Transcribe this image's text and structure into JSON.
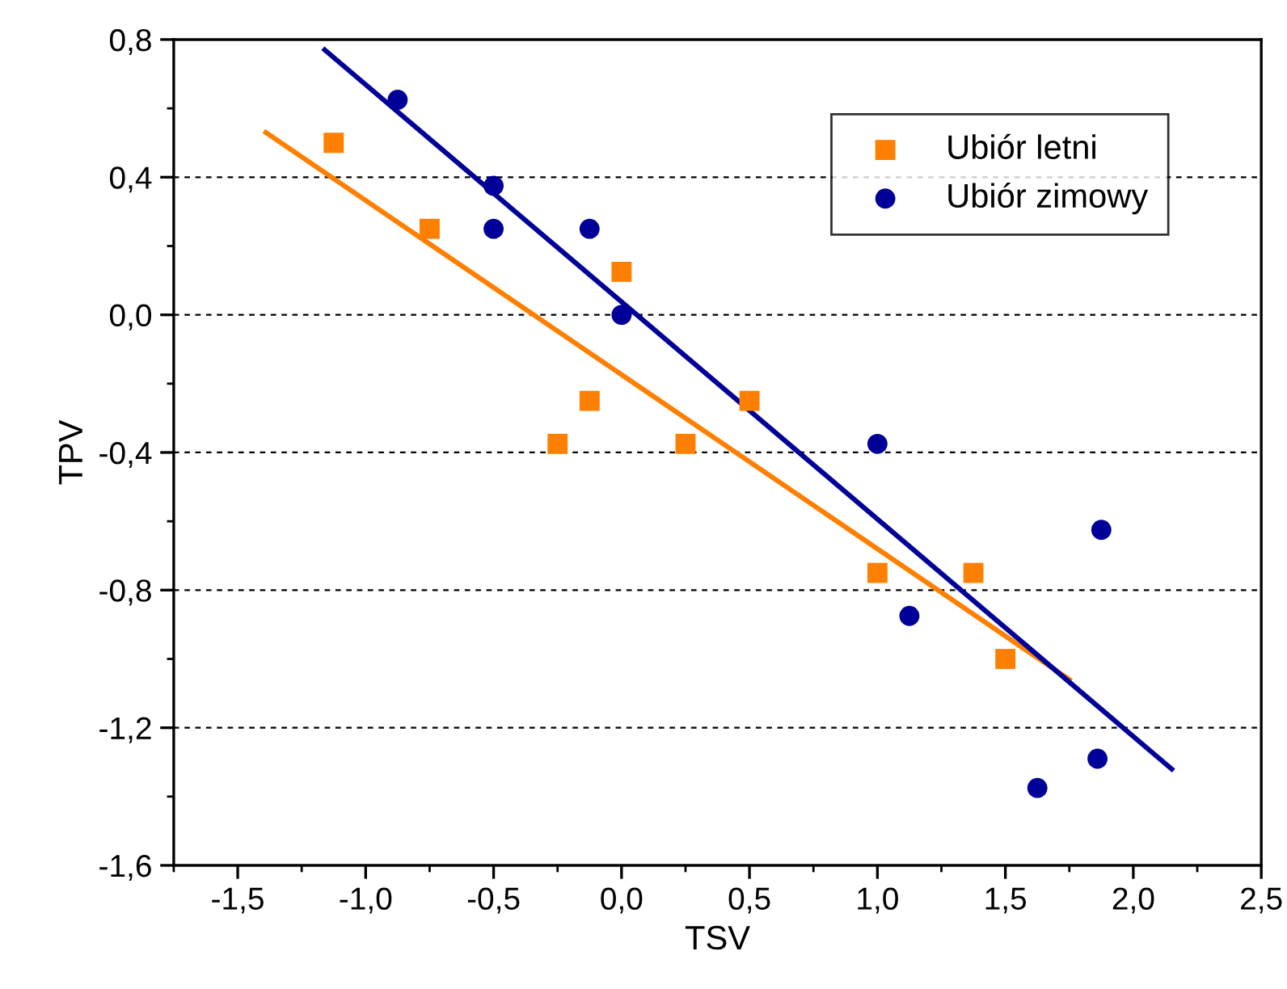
{
  "chart_data": {
    "type": "scatter",
    "xlabel": "TSV",
    "ylabel": "TPV",
    "xlim": [
      -1.75,
      2.5
    ],
    "xticks": [
      {
        "value": -1.5,
        "label": "-1,5"
      },
      {
        "value": -1.0,
        "label": "-1,0"
      },
      {
        "value": -0.5,
        "label": "-0,5"
      },
      {
        "value": 0.0,
        "label": "0,0"
      },
      {
        "value": 0.5,
        "label": "0,5"
      },
      {
        "value": 1.0,
        "label": "1,0"
      },
      {
        "value": 1.5,
        "label": "1,5"
      },
      {
        "value": 2.0,
        "label": "2,0"
      },
      {
        "value": 2.5,
        "label": "2,5"
      }
    ],
    "ylim": [
      -1.6,
      0.8
    ],
    "yticks": [
      {
        "value": -1.6,
        "label": "-1,6"
      },
      {
        "value": -1.2,
        "label": "-1,2"
      },
      {
        "value": -0.8,
        "label": "-0,8"
      },
      {
        "value": -0.4,
        "label": "-0,4"
      },
      {
        "value": 0.0,
        "label": "0,0"
      },
      {
        "value": 0.4,
        "label": "0,4"
      },
      {
        "value": 0.8,
        "label": "0,8"
      }
    ],
    "grid": "y",
    "legend": "top right",
    "series": [
      {
        "name": "Ubiór letni",
        "color": "#ff7f00",
        "marker": "square",
        "x": [
          -1.125,
          -0.75,
          0.0,
          -0.125,
          -0.25,
          0.25,
          0.5,
          1.0,
          1.375,
          1.5
        ],
        "values": [
          0.5,
          0.25,
          0.125,
          -0.25,
          -0.375,
          -0.375,
          -0.25,
          -0.75,
          -0.75,
          -1.0
        ]
      },
      {
        "name": "Ubiór zimowy",
        "color": "#000099",
        "marker": "circle",
        "x": [
          -0.875,
          -0.5,
          -0.5,
          -0.125,
          0.0,
          1.0,
          1.125,
          1.875,
          1.625,
          1.86
        ],
        "values": [
          0.625,
          0.375,
          0.25,
          0.25,
          0.0,
          -0.375,
          -0.875,
          -0.625,
          -1.375,
          -1.29
        ]
      },
      {
        "type": "line",
        "color": "#ff7f00",
        "x": [
          -1.39,
          1.75
        ],
        "values": [
          0.53,
          -1.06
        ]
      },
      {
        "type": "line",
        "color": "#000099",
        "x": [
          -1.16,
          2.15
        ],
        "values": [
          0.77,
          -1.32
        ]
      }
    ]
  }
}
